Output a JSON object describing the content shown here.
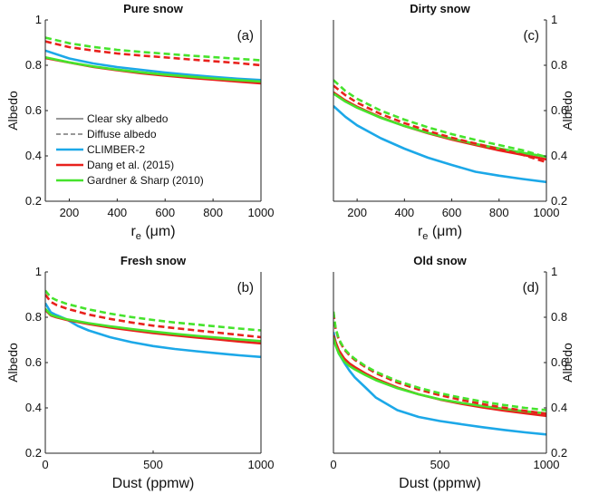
{
  "chart_data": [
    {
      "panel": "a",
      "type": "line",
      "title": "Pure snow",
      "panel_label": "(a)",
      "xlabel": "r",
      "xlabel_sub": "e",
      "xlabel_unit": "(μm)",
      "ylabel": "Albedo",
      "ylabel_side": "left",
      "xlim": [
        100,
        1000
      ],
      "ylim": [
        0.2,
        1
      ],
      "xticks": [
        200,
        400,
        600,
        800,
        1000
      ],
      "yticks": [
        0.2,
        0.4,
        0.6,
        0.8,
        1
      ],
      "ytick_labels": [
        "0.2",
        "0.4",
        "0.6",
        "0.8",
        "1"
      ],
      "series": [
        {
          "name": "CLIMBER-2",
          "color": "#1ca8e8",
          "style": "solid",
          "x": [
            100,
            200,
            300,
            400,
            500,
            600,
            700,
            800,
            900,
            1000
          ],
          "values": [
            0.865,
            0.83,
            0.808,
            0.792,
            0.78,
            0.768,
            0.758,
            0.749,
            0.741,
            0.735
          ]
        },
        {
          "name": "Dang et al. (2015)",
          "color": "#e8211c",
          "style": "solid",
          "x": [
            100,
            200,
            300,
            400,
            500,
            600,
            700,
            800,
            900,
            1000
          ],
          "values": [
            0.832,
            0.812,
            0.793,
            0.778,
            0.765,
            0.754,
            0.745,
            0.737,
            0.728,
            0.72
          ]
        },
        {
          "name": "Gardner & Sharp (2010)",
          "color": "#46e32c",
          "style": "solid",
          "x": [
            100,
            200,
            300,
            400,
            500,
            600,
            700,
            800,
            900,
            1000
          ],
          "values": [
            0.835,
            0.813,
            0.795,
            0.781,
            0.769,
            0.759,
            0.75,
            0.742,
            0.735,
            0.728
          ]
        },
        {
          "name": "Dang et al. (2015)",
          "color": "#e8211c",
          "style": "dashed",
          "x": [
            100,
            200,
            300,
            400,
            500,
            600,
            700,
            800,
            900,
            1000
          ],
          "values": [
            0.905,
            0.88,
            0.865,
            0.852,
            0.843,
            0.835,
            0.826,
            0.818,
            0.81,
            0.8
          ]
        },
        {
          "name": "Gardner & Sharp (2010)",
          "color": "#46e32c",
          "style": "dashed",
          "x": [
            100,
            200,
            300,
            400,
            500,
            600,
            700,
            800,
            900,
            1000
          ],
          "values": [
            0.922,
            0.897,
            0.881,
            0.868,
            0.859,
            0.851,
            0.843,
            0.836,
            0.829,
            0.822
          ]
        }
      ],
      "legend": {
        "placement": "lower-left",
        "entries": [
          {
            "label": "Clear sky albedo",
            "color": "#333333",
            "style": "solid-thin"
          },
          {
            "label": "Diffuse albedo",
            "color": "#333333",
            "style": "dashed-thin"
          },
          {
            "label": "CLIMBER-2",
            "color": "#1ca8e8",
            "style": "solid"
          },
          {
            "label": "Dang et al. (2015)",
            "color": "#e8211c",
            "style": "solid"
          },
          {
            "label": "Gardner & Sharp (2010)",
            "color": "#46e32c",
            "style": "solid"
          }
        ]
      }
    },
    {
      "panel": "c",
      "type": "line",
      "title": "Dirty snow",
      "panel_label": "(c)",
      "xlabel": "r",
      "xlabel_sub": "e",
      "xlabel_unit": "(μm)",
      "ylabel": "Albedo",
      "ylabel_side": "right",
      "xlim": [
        100,
        1000
      ],
      "ylim": [
        0.2,
        1
      ],
      "xticks": [
        200,
        400,
        600,
        800,
        1000
      ],
      "yticks": [
        0.2,
        0.4,
        0.6,
        0.8,
        1
      ],
      "ytick_labels": [
        "0.2",
        "0.4",
        "0.6",
        "0.8",
        "1"
      ],
      "series": [
        {
          "name": "CLIMBER-2",
          "color": "#1ca8e8",
          "style": "solid",
          "x": [
            100,
            150,
            200,
            300,
            400,
            500,
            600,
            700,
            800,
            900,
            1000
          ],
          "values": [
            0.62,
            0.573,
            0.535,
            0.478,
            0.432,
            0.392,
            0.36,
            0.33,
            0.313,
            0.298,
            0.285
          ]
        },
        {
          "name": "Dang et al. (2015)",
          "color": "#e8211c",
          "style": "solid",
          "x": [
            100,
            150,
            200,
            300,
            400,
            500,
            600,
            700,
            800,
            900,
            1000
          ],
          "values": [
            0.68,
            0.645,
            0.617,
            0.57,
            0.532,
            0.5,
            0.472,
            0.448,
            0.425,
            0.405,
            0.385
          ]
        },
        {
          "name": "Gardner & Sharp (2010)",
          "color": "#46e32c",
          "style": "solid",
          "x": [
            100,
            150,
            200,
            300,
            400,
            500,
            600,
            700,
            800,
            900,
            1000
          ],
          "values": [
            0.675,
            0.64,
            0.613,
            0.568,
            0.532,
            0.502,
            0.476,
            0.453,
            0.433,
            0.414,
            0.396
          ]
        },
        {
          "name": "Dang et al. (2015)",
          "color": "#e8211c",
          "style": "dashed",
          "x": [
            100,
            150,
            200,
            300,
            400,
            500,
            600,
            700,
            800,
            900,
            1000
          ],
          "values": [
            0.71,
            0.668,
            0.635,
            0.585,
            0.545,
            0.51,
            0.48,
            0.455,
            0.43,
            0.405,
            0.372
          ]
        },
        {
          "name": "Gardner & Sharp (2010)",
          "color": "#46e32c",
          "style": "dashed",
          "x": [
            100,
            150,
            200,
            300,
            400,
            500,
            600,
            700,
            800,
            900,
            1000
          ],
          "values": [
            0.735,
            0.687,
            0.652,
            0.6,
            0.56,
            0.526,
            0.496,
            0.471,
            0.448,
            0.425,
            0.395
          ]
        }
      ]
    },
    {
      "panel": "b",
      "type": "line",
      "title": "Fresh snow",
      "panel_label": "(b)",
      "xlabel": "Dust (ppmw)",
      "ylabel": "Albedo",
      "ylabel_side": "left",
      "xlim": [
        0,
        1000
      ],
      "ylim": [
        0.2,
        1
      ],
      "xticks": [
        0,
        500,
        1000
      ],
      "yticks": [
        0.2,
        0.4,
        0.6,
        0.8,
        1
      ],
      "ytick_labels": [
        "0.2",
        "0.4",
        "0.6",
        "0.8",
        "1"
      ],
      "series": [
        {
          "name": "CLIMBER-2",
          "color": "#1ca8e8",
          "style": "solid",
          "x": [
            0,
            25,
            50,
            100,
            150,
            200,
            300,
            400,
            500,
            600,
            700,
            800,
            900,
            1000
          ],
          "values": [
            0.862,
            0.822,
            0.81,
            0.79,
            0.762,
            0.742,
            0.712,
            0.69,
            0.673,
            0.66,
            0.65,
            0.641,
            0.632,
            0.625
          ]
        },
        {
          "name": "Dang et al. (2015)",
          "color": "#e8211c",
          "style": "solid",
          "x": [
            0,
            25,
            50,
            100,
            200,
            300,
            400,
            500,
            600,
            700,
            800,
            900,
            1000
          ],
          "values": [
            0.832,
            0.808,
            0.8,
            0.788,
            0.77,
            0.755,
            0.742,
            0.73,
            0.72,
            0.711,
            0.702,
            0.693,
            0.685
          ]
        },
        {
          "name": "Gardner & Sharp (2010)",
          "color": "#46e32c",
          "style": "solid",
          "x": [
            0,
            25,
            50,
            100,
            200,
            300,
            400,
            500,
            600,
            700,
            800,
            900,
            1000
          ],
          "values": [
            0.837,
            0.811,
            0.803,
            0.791,
            0.774,
            0.76,
            0.748,
            0.737,
            0.727,
            0.718,
            0.71,
            0.702,
            0.695
          ]
        },
        {
          "name": "Dang et al. (2015)",
          "color": "#e8211c",
          "style": "dashed",
          "x": [
            0,
            25,
            50,
            100,
            200,
            300,
            400,
            500,
            600,
            700,
            800,
            900,
            1000
          ],
          "values": [
            0.9,
            0.868,
            0.855,
            0.838,
            0.812,
            0.793,
            0.777,
            0.763,
            0.752,
            0.742,
            0.732,
            0.722,
            0.712
          ]
        },
        {
          "name": "Gardner & Sharp (2010)",
          "color": "#46e32c",
          "style": "dashed",
          "x": [
            0,
            25,
            50,
            100,
            200,
            300,
            400,
            500,
            600,
            700,
            800,
            900,
            1000
          ],
          "values": [
            0.918,
            0.888,
            0.876,
            0.859,
            0.835,
            0.816,
            0.801,
            0.788,
            0.777,
            0.768,
            0.759,
            0.75,
            0.742
          ]
        }
      ]
    },
    {
      "panel": "d",
      "type": "line",
      "title": "Old snow",
      "panel_label": "(d)",
      "xlabel": "Dust (ppmw)",
      "ylabel": "Albedo",
      "ylabel_side": "right",
      "xlim": [
        0,
        1000
      ],
      "ylim": [
        0.2,
        1
      ],
      "xticks": [
        0,
        500,
        1000
      ],
      "yticks": [
        0.2,
        0.4,
        0.6,
        0.8,
        1
      ],
      "ytick_labels": [
        "0.2",
        "0.4",
        "0.6",
        "0.8",
        "1"
      ],
      "series": [
        {
          "name": "CLIMBER-2",
          "color": "#1ca8e8",
          "style": "solid",
          "x": [
            0,
            10,
            25,
            50,
            75,
            100,
            150,
            200,
            300,
            400,
            500,
            600,
            700,
            800,
            900,
            1000
          ],
          "values": [
            0.735,
            0.69,
            0.64,
            0.6,
            0.565,
            0.535,
            0.49,
            0.445,
            0.39,
            0.36,
            0.342,
            0.328,
            0.315,
            0.303,
            0.292,
            0.283
          ]
        },
        {
          "name": "Dang et al. (2015)",
          "color": "#e8211c",
          "style": "solid",
          "x": [
            0,
            10,
            25,
            50,
            75,
            100,
            150,
            200,
            300,
            400,
            500,
            600,
            700,
            800,
            900,
            1000
          ],
          "values": [
            0.72,
            0.69,
            0.655,
            0.618,
            0.596,
            0.58,
            0.552,
            0.528,
            0.49,
            0.46,
            0.437,
            0.418,
            0.402,
            0.388,
            0.376,
            0.365
          ]
        },
        {
          "name": "Gardner & Sharp (2010)",
          "color": "#46e32c",
          "style": "solid",
          "x": [
            0,
            10,
            25,
            50,
            75,
            100,
            150,
            200,
            300,
            400,
            500,
            600,
            700,
            800,
            900,
            1000
          ],
          "values": [
            0.71,
            0.675,
            0.64,
            0.605,
            0.585,
            0.57,
            0.545,
            0.522,
            0.487,
            0.46,
            0.438,
            0.422,
            0.408,
            0.396,
            0.385,
            0.376
          ]
        },
        {
          "name": "Dang et al. (2015)",
          "color": "#e8211c",
          "style": "dashed",
          "x": [
            0,
            10,
            25,
            50,
            75,
            100,
            150,
            200,
            300,
            400,
            500,
            600,
            700,
            800,
            900,
            1000
          ],
          "values": [
            0.82,
            0.748,
            0.7,
            0.658,
            0.632,
            0.612,
            0.58,
            0.553,
            0.512,
            0.481,
            0.456,
            0.435,
            0.417,
            0.401,
            0.387,
            0.374
          ]
        },
        {
          "name": "Gardner & Sharp (2010)",
          "color": "#46e32c",
          "style": "dashed",
          "x": [
            0,
            10,
            25,
            50,
            75,
            100,
            150,
            200,
            300,
            400,
            500,
            600,
            700,
            800,
            900,
            1000
          ],
          "values": [
            0.825,
            0.752,
            0.704,
            0.662,
            0.636,
            0.617,
            0.585,
            0.559,
            0.519,
            0.489,
            0.465,
            0.445,
            0.428,
            0.413,
            0.4,
            0.39
          ]
        }
      ]
    }
  ]
}
